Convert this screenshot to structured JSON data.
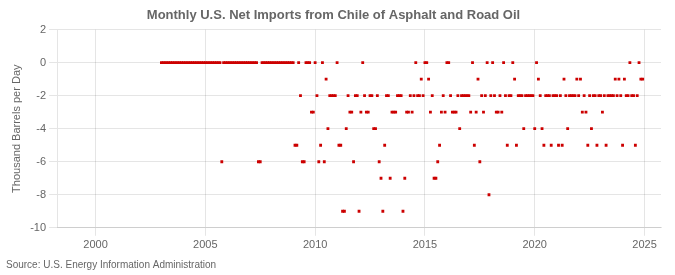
{
  "chart_data": {
    "type": "scatter",
    "title": "Monthly U.S. Net Imports from Chile of Asphalt and Road Oil",
    "ylabel": "Thousand Barrels per Day",
    "annotations": [
      "Source: U.S. Energy Information Administration"
    ],
    "color": "#cc0000",
    "marker": "square",
    "grid": true,
    "xlim": [
      1998.25,
      2025.75
    ],
    "xticks": [
      2000,
      2005,
      2010,
      2015,
      2020,
      2025
    ],
    "ylim": [
      -10,
      2
    ],
    "yticks": [
      -10,
      -8,
      -6,
      -4,
      -2,
      0,
      2
    ],
    "x": [
      2003.0,
      2003.083,
      2003.167,
      2003.25,
      2003.333,
      2003.417,
      2003.5,
      2003.583,
      2003.667,
      2003.75,
      2003.833,
      2003.917,
      2004.0,
      2004.083,
      2004.167,
      2004.25,
      2004.333,
      2004.417,
      2004.5,
      2004.583,
      2004.667,
      2004.75,
      2004.833,
      2004.917,
      2005.0,
      2005.083,
      2005.167,
      2005.25,
      2005.333,
      2005.417,
      2005.5,
      2005.583,
      2005.667,
      2005.75,
      2005.833,
      2005.917,
      2006.0,
      2006.083,
      2006.167,
      2006.25,
      2006.333,
      2006.417,
      2006.5,
      2006.583,
      2006.667,
      2006.75,
      2006.833,
      2006.917,
      2007.0,
      2007.083,
      2007.167,
      2007.25,
      2007.333,
      2007.417,
      2007.5,
      2007.583,
      2007.667,
      2007.75,
      2007.833,
      2007.917,
      2008.0,
      2008.083,
      2008.167,
      2008.25,
      2008.333,
      2008.417,
      2008.5,
      2008.583,
      2008.667,
      2008.75,
      2008.833,
      2008.917,
      2009.0,
      2009.083,
      2009.167,
      2009.25,
      2009.333,
      2009.417,
      2009.5,
      2009.583,
      2009.667,
      2009.75,
      2009.833,
      2009.917,
      2010.0,
      2010.083,
      2010.167,
      2010.25,
      2010.333,
      2010.417,
      2010.5,
      2010.583,
      2010.667,
      2010.75,
      2010.833,
      2010.917,
      2011.0,
      2011.083,
      2011.167,
      2011.25,
      2011.333,
      2011.417,
      2011.5,
      2011.583,
      2011.667,
      2011.75,
      2011.833,
      2011.917,
      2012.0,
      2012.083,
      2012.167,
      2012.25,
      2012.333,
      2012.417,
      2012.5,
      2012.583,
      2012.667,
      2012.75,
      2012.833,
      2012.917,
      2013.0,
      2013.083,
      2013.167,
      2013.25,
      2013.333,
      2013.417,
      2013.5,
      2013.583,
      2013.667,
      2013.75,
      2013.833,
      2013.917,
      2014.0,
      2014.083,
      2014.167,
      2014.25,
      2014.333,
      2014.417,
      2014.5,
      2014.583,
      2014.667,
      2014.75,
      2014.833,
      2014.917,
      2015.0,
      2015.083,
      2015.167,
      2015.25,
      2015.333,
      2015.417,
      2015.5,
      2015.583,
      2015.667,
      2015.75,
      2015.833,
      2015.917,
      2016.0,
      2016.083,
      2016.167,
      2016.25,
      2016.333,
      2016.417,
      2016.5,
      2016.583,
      2016.667,
      2016.75,
      2016.833,
      2016.917,
      2017.0,
      2017.083,
      2017.167,
      2017.25,
      2017.333,
      2017.417,
      2017.5,
      2017.583,
      2017.667,
      2017.75,
      2017.833,
      2017.917,
      2018.0,
      2018.083,
      2018.167,
      2018.25,
      2018.333,
      2018.417,
      2018.5,
      2018.583,
      2018.667,
      2018.75,
      2018.833,
      2018.917,
      2019.0,
      2019.083,
      2019.167,
      2019.25,
      2019.333,
      2019.417,
      2019.5,
      2019.583,
      2019.667,
      2019.75,
      2019.833,
      2019.917,
      2020.0,
      2020.083,
      2020.167,
      2020.25,
      2020.333,
      2020.417,
      2020.5,
      2020.583,
      2020.667,
      2020.75,
      2020.833,
      2020.917,
      2021.0,
      2021.083,
      2021.167,
      2021.25,
      2021.333,
      2021.417,
      2021.5,
      2021.583,
      2021.667,
      2021.75,
      2021.833,
      2021.917,
      2022.0,
      2022.083,
      2022.167,
      2022.25,
      2022.333,
      2022.417,
      2022.5,
      2022.583,
      2022.667,
      2022.75,
      2022.833,
      2022.917,
      2023.0,
      2023.083,
      2023.167,
      2023.25,
      2023.333,
      2023.417,
      2023.5,
      2023.583,
      2023.667,
      2023.75,
      2023.833,
      2023.917,
      2024.0,
      2024.083,
      2024.167,
      2024.25,
      2024.333,
      2024.417,
      2024.5,
      2024.583,
      2024.667,
      2024.75,
      2024.833,
      2024.917
    ],
    "values": [
      0,
      0,
      0,
      0,
      0,
      0,
      0,
      0,
      0,
      0,
      0,
      0,
      0,
      0,
      0,
      0,
      0,
      0,
      0,
      0,
      0,
      0,
      0,
      0,
      0,
      0,
      0,
      0,
      0,
      0,
      0,
      0,
      0,
      -6,
      0,
      0,
      0,
      0,
      0,
      0,
      0,
      0,
      0,
      0,
      0,
      0,
      0,
      0,
      0,
      0,
      0,
      0,
      0,
      -6,
      -6,
      0,
      0,
      0,
      0,
      0,
      0,
      0,
      0,
      0,
      0,
      0,
      0,
      0,
      0,
      0,
      0,
      0,
      0,
      -5,
      -5,
      0,
      -2,
      -6,
      -6,
      0,
      0,
      0,
      -3,
      -3,
      0,
      -2,
      -6,
      -5,
      0,
      -6,
      -1,
      -4,
      -2,
      -2,
      -2,
      -2,
      0,
      -5,
      -5,
      -9,
      -9,
      -4,
      -2,
      -3,
      -3,
      -6,
      -2,
      -2,
      -9,
      -3,
      0,
      -2,
      -3,
      -3,
      -2,
      -2,
      -4,
      -4,
      -2,
      -6,
      -7,
      -9,
      -5,
      -2,
      -2,
      -7,
      -3,
      -3,
      -3,
      -2,
      -2,
      -2,
      -9,
      -7,
      -3,
      -3,
      -2,
      -3,
      -2,
      0,
      -2,
      -2,
      -1,
      -2,
      0,
      0,
      -1,
      -3,
      -2,
      -7,
      -7,
      -6,
      -5,
      -3,
      -2,
      -3,
      0,
      0,
      -2,
      -3,
      -3,
      -3,
      -2,
      -4,
      -2,
      -2,
      -2,
      -2,
      -2,
      -3,
      0,
      -5,
      -3,
      -1,
      -6,
      -2,
      -3,
      -2,
      0,
      -8,
      -2,
      0,
      -2,
      -3,
      -3,
      -2,
      -3,
      0,
      -2,
      -5,
      -2,
      -2,
      0,
      -1,
      -5,
      -2,
      -2,
      -2,
      -4,
      -2,
      -2,
      -2,
      -2,
      -2,
      -4,
      0,
      -1,
      -2,
      -4,
      -5,
      -2,
      -2,
      -2,
      -5,
      -2,
      -2,
      -2,
      -5,
      -2,
      -5,
      -1,
      -2,
      -4,
      -2,
      -2,
      -2,
      -2,
      -1,
      -2,
      -1,
      -3,
      -2,
      -3,
      -5,
      -2,
      -4,
      -2,
      -2,
      -5,
      -2,
      -2,
      -3,
      -2,
      -5,
      -2,
      -2,
      -2,
      -2,
      -1,
      -2,
      -1,
      -2,
      -5,
      -1,
      -2,
      -2,
      0,
      -2,
      -2,
      -5,
      -2,
      0,
      -1,
      -1
    ]
  }
}
